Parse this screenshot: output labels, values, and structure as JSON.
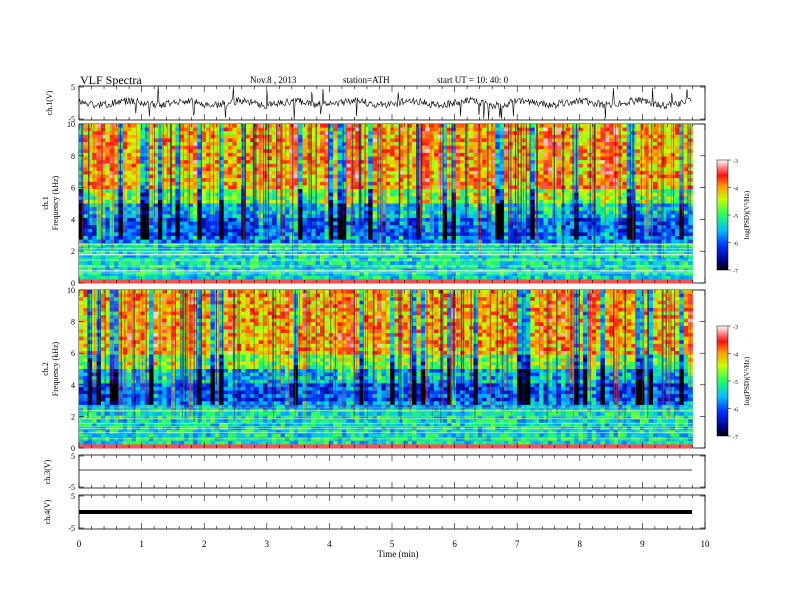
{
  "header": {
    "title": "VLF  Spectra",
    "date": "Nov.8  , 2013",
    "station": "station=ATH",
    "start": "start  UT  =   10: 40: 0"
  },
  "chart_data": [
    {
      "type": "line",
      "panel": "ch1-waveform",
      "ylabel": "ch.1(V)",
      "ylim": [
        -5,
        5
      ],
      "yticks": [
        "5",
        "-5"
      ],
      "xlim": [
        0,
        10
      ],
      "baseline": 0,
      "series": [
        {
          "x": [
            0,
            9.8
          ],
          "values": [
            0.0,
            0.0
          ]
        }
      ]
    },
    {
      "type": "heatmap",
      "panel": "ch1-spectrogram",
      "ylabel_top": "ch.1",
      "ylabel": "Frequency  (kHz)",
      "ylim": [
        0,
        10
      ],
      "yticks": [
        "0",
        "2",
        "4",
        "6",
        "8",
        "10"
      ],
      "xlim": [
        0,
        10
      ],
      "data_end": 9.8,
      "colorbar": {
        "label": "log(PSD)(V²/Hz)",
        "range": [
          -7,
          -3
        ],
        "ticks": [
          "-3",
          "-4",
          "-5",
          "-6",
          "-7"
        ]
      }
    },
    {
      "type": "heatmap",
      "panel": "ch2-spectrogram",
      "ylabel_top": "ch.2",
      "ylabel": "Frequency  (kHz)",
      "ylim": [
        0,
        10
      ],
      "yticks": [
        "0",
        "2",
        "4",
        "6",
        "8",
        "10"
      ],
      "xlim": [
        0,
        10
      ],
      "data_end": 9.8,
      "colorbar": {
        "label": "log(PSD)(V²/Hz)",
        "range": [
          -7,
          -3
        ],
        "ticks": [
          "-3",
          "-4",
          "-5",
          "-6",
          "-7"
        ]
      }
    },
    {
      "type": "line",
      "panel": "ch3-waveform",
      "ylabel": "ch.3(V)",
      "ylim": [
        -5,
        5
      ],
      "yticks": [
        "5",
        "-5"
      ],
      "xlim": [
        0,
        10
      ],
      "series": [
        {
          "x": [
            0,
            9.8
          ],
          "values": [
            0.0,
            0.0
          ]
        }
      ]
    },
    {
      "type": "line",
      "panel": "ch4-waveform",
      "ylabel": "ch.4(V)",
      "ylim": [
        -5,
        5
      ],
      "yticks": [
        "5",
        "-5"
      ],
      "xlim": [
        0,
        10
      ],
      "series": [
        {
          "x": [
            0,
            9.8
          ],
          "values": [
            0.0,
            0.0
          ]
        }
      ]
    }
  ],
  "x_axis": {
    "label": "Time  (min)",
    "ticks": [
      "0",
      "1",
      "2",
      "3",
      "4",
      "5",
      "6",
      "7",
      "8",
      "9",
      "10"
    ]
  }
}
